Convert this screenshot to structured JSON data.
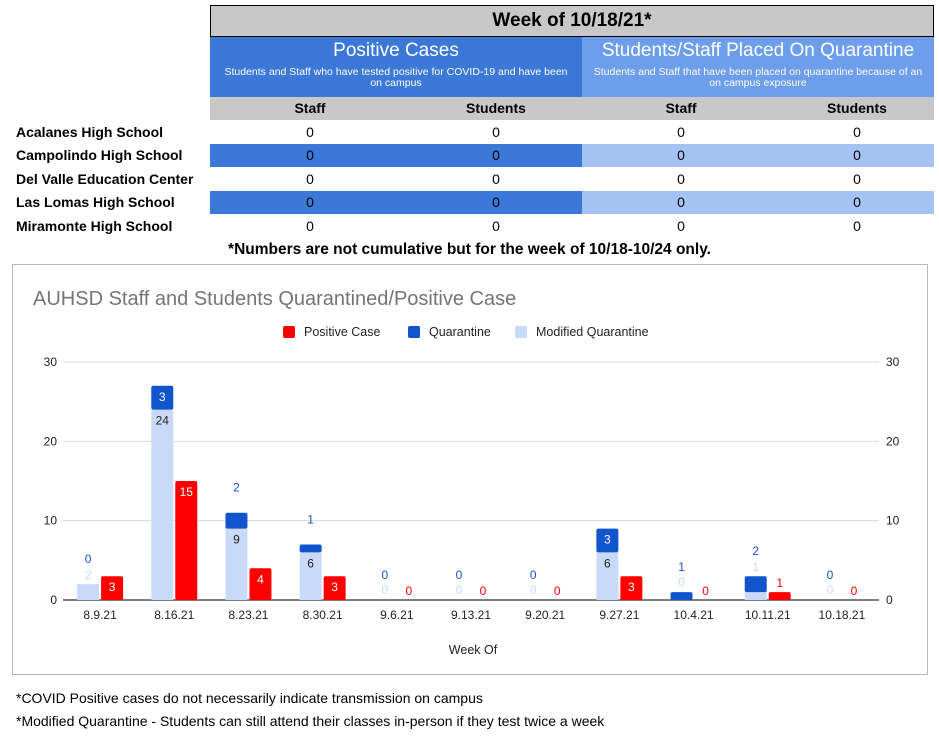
{
  "table": {
    "title": "Week of 10/18/21*",
    "positive": {
      "title": "Positive Cases",
      "subtitle": "Students and Staff who have tested positive for COVID-19 and have been on campus"
    },
    "quarantine": {
      "title": "Students/Staff Placed On Quarantine",
      "subtitle": "Students and Staff that have been placed on quarantine because of an on campus exposure"
    },
    "col_headers": [
      "Staff",
      "Students",
      "Staff",
      "Students"
    ],
    "rows": [
      {
        "school": "Acalanes High School",
        "values": [
          "0",
          "0",
          "0",
          "0"
        ]
      },
      {
        "school": "Campolindo High School",
        "values": [
          "0",
          "0",
          "0",
          "0"
        ]
      },
      {
        "school": "Del Valle Education Center",
        "values": [
          "0",
          "0",
          "0",
          "0"
        ]
      },
      {
        "school": "Las Lomas High School",
        "values": [
          "0",
          "0",
          "0",
          "0"
        ]
      },
      {
        "school": "Miramonte High School",
        "values": [
          "0",
          "0",
          "0",
          "0"
        ]
      }
    ],
    "note": "*Numbers are not cumulative but for the week of 10/18-10/24 only."
  },
  "colors": {
    "header_gray": "#c8c8c8",
    "positive_blue": "#3b78d8",
    "quarantine_blue": "#6d9eeb",
    "quarantine_light": "#a4c2f4",
    "positive_red": "#ff0000",
    "quarantine_dark": "#1155cc",
    "modified_light": "#c9daf8"
  },
  "chart_data": {
    "type": "bar",
    "title": "AUHSD Staff and Students Quarantined/Positive Case",
    "xlabel": "Week Of",
    "ylabel": "",
    "ylim": [
      0,
      30
    ],
    "yticks": [
      0,
      10,
      20,
      30
    ],
    "grid": true,
    "legend_position": "top",
    "categories": [
      "8.9.21",
      "8.16.21",
      "8.23.21",
      "8.30.21",
      "9.6.21",
      "9.13.21",
      "9.20.21",
      "9.27.21",
      "10.4.21",
      "10.11.21",
      "10.18.21"
    ],
    "series": [
      {
        "name": "Positive Case",
        "color": "#ff0000",
        "stack": "positive",
        "values": [
          3,
          15,
          4,
          3,
          0,
          0,
          0,
          3,
          0,
          1,
          0
        ]
      },
      {
        "name": "Quarantine",
        "color": "#1155cc",
        "stack": "quarantine",
        "values": [
          0,
          3,
          2,
          1,
          0,
          0,
          0,
          3,
          1,
          2,
          0
        ]
      },
      {
        "name": "Modified Quarantine",
        "color": "#c9daf8",
        "stack": "quarantine",
        "values": [
          2,
          24,
          9,
          6,
          0,
          0,
          0,
          6,
          0,
          1,
          0
        ]
      }
    ],
    "legend": [
      "Positive Case",
      "Quarantine",
      "Modified Quarantine"
    ]
  },
  "footnotes": [
    "*COVID Positive cases do not necessarily indicate transmission on campus",
    "*Modified Quarantine - Students can still attend their classes in-person if they test twice a week"
  ]
}
